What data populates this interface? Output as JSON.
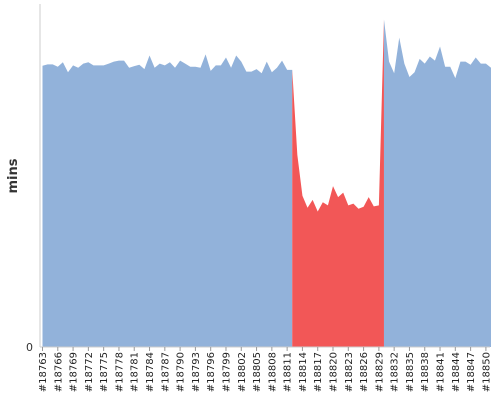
{
  "chart_data": {
    "type": "area",
    "ylabel": "mins",
    "y_tick_labels": [
      "0"
    ],
    "x_tick_labels": [
      "#18763",
      "#18766",
      "#18769",
      "#18772",
      "#18775",
      "#18778",
      "#18781",
      "#18784",
      "#18787",
      "#18790",
      "#18793",
      "#18796",
      "#18799",
      "#18802",
      "#18805",
      "#18808",
      "#18811",
      "#18814",
      "#18817",
      "#18820",
      "#18823",
      "#18826",
      "#18829",
      "#18832",
      "#18835",
      "#18838",
      "#18841",
      "#18844",
      "#18847",
      "#18850"
    ],
    "x_range": [
      18763,
      18851
    ],
    "ylim": [
      0,
      100
    ],
    "grid": false,
    "legend": "none",
    "colors": {
      "normal": "#92b2da",
      "highlight": "#f25757",
      "axis": "#cccccc"
    },
    "highlight_range": [
      18812,
      18829
    ],
    "series": [
      {
        "x": [
          18763,
          18764,
          18765,
          18766,
          18767,
          18768,
          18769,
          18770,
          18771,
          18772,
          18773,
          18774,
          18775,
          18776,
          18777,
          18778,
          18779,
          18780,
          18781,
          18782,
          18783,
          18784,
          18785,
          18786,
          18787,
          18788,
          18789,
          18790,
          18791,
          18792,
          18793,
          18794,
          18795,
          18796,
          18797,
          18798,
          18799,
          18800,
          18801,
          18802,
          18803,
          18804,
          18805,
          18806,
          18807,
          18808,
          18809,
          18810,
          18811,
          18812,
          18813,
          18814,
          18815,
          18816,
          18817,
          18818,
          18819,
          18820,
          18821,
          18822,
          18823,
          18824,
          18825,
          18826,
          18827,
          18828,
          18829,
          18830,
          18831,
          18832,
          18833,
          18834,
          18835,
          18836,
          18837,
          18838,
          18839,
          18840,
          18841,
          18842,
          18843,
          18844,
          18845,
          18846,
          18847,
          18848,
          18849,
          18850,
          18851
        ],
        "values": [
          82,
          82.4,
          82.4,
          81.7,
          83,
          80.1,
          82.1,
          81.4,
          82.6,
          83,
          82.1,
          82.1,
          82.1,
          82.6,
          83.2,
          83.5,
          83.5,
          81.4,
          81.9,
          82.3,
          81,
          85,
          81.4,
          82.6,
          82.1,
          83,
          81.4,
          83.5,
          82.6,
          81.7,
          81.7,
          81.4,
          85.3,
          80.5,
          82.1,
          82.1,
          84.4,
          81.4,
          85,
          83.2,
          80.3,
          80.3,
          81,
          79.8,
          83.2,
          80.1,
          81.4,
          83.5,
          80.8,
          80.8,
          56,
          44.1,
          40.6,
          42.9,
          39.5,
          42.2,
          41.3,
          46.9,
          43.7,
          45,
          41.3,
          41.8,
          40.3,
          40.9,
          43.7,
          41,
          41.3,
          95.5,
          83.2,
          79.8,
          90.2,
          82.6,
          78.7,
          80.1,
          84,
          82.6,
          84.7,
          83.5,
          87.6,
          81.7,
          81.7,
          78.4,
          83.2,
          83.2,
          82.3,
          84.4,
          82.6,
          82.6,
          81.4
        ]
      }
    ]
  }
}
